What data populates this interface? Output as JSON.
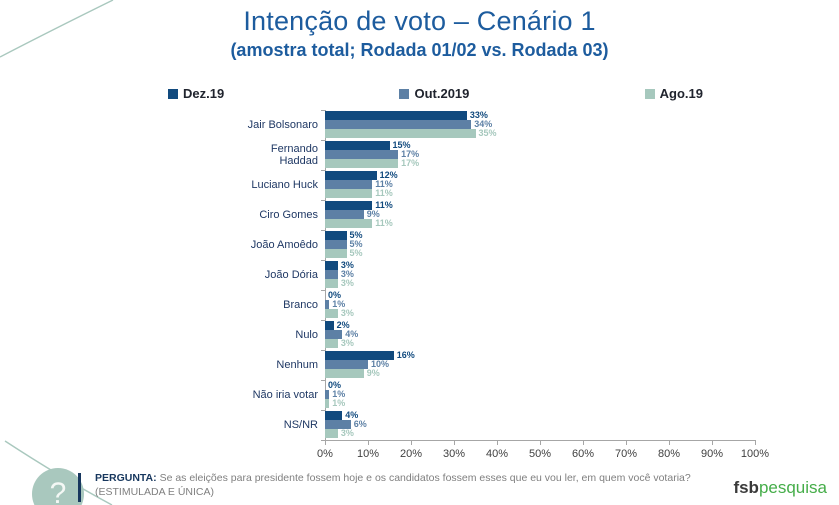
{
  "slide": {
    "title": "Intenção de voto – Cenário 1",
    "subtitle": "(amostra total; Rodada 01/02 vs. Rodada 03)"
  },
  "colors": {
    "title_blue": "#1d5c9e",
    "accent_navy": "#17375e",
    "axis_gray": "#a6a6a6",
    "tick_text": "#404040",
    "text_gray": "#7f7f7f",
    "legend_text": "#20242e",
    "deco_green": "#a9c8be",
    "logo_green": "#45ad49",
    "logo_dark": "#3a3a3a"
  },
  "chart_data": {
    "type": "bar",
    "orientation": "horizontal",
    "title": "Intenção de voto – Cenário 1",
    "subtitle": "(amostra total; Rodada 01/02 vs. Rodada 03)",
    "categories": [
      "Jair Bolsonaro",
      "Fernando Haddad",
      "Luciano Huck",
      "Ciro Gomes",
      "João Amoêdo",
      "João Dória",
      "Branco",
      "Nulo",
      "Nenhum",
      "Não iria votar",
      "NS/NR"
    ],
    "series": [
      {
        "name": "Dez.19",
        "color": "#114a7e",
        "values": [
          33,
          15,
          12,
          11,
          5,
          3,
          0,
          2,
          16,
          0,
          4
        ]
      },
      {
        "name": "Out.2019",
        "color": "#5d80a5",
        "values": [
          34,
          17,
          11,
          9,
          5,
          3,
          1,
          4,
          10,
          1,
          6
        ]
      },
      {
        "name": "Ago.19",
        "color": "#a6c8bd",
        "values": [
          35,
          17,
          11,
          11,
          5,
          3,
          3,
          3,
          9,
          1,
          3
        ]
      }
    ],
    "x_ticks": [
      "0%",
      "10%",
      "20%",
      "30%",
      "40%",
      "50%",
      "60%",
      "70%",
      "80%",
      "90%",
      "100%"
    ],
    "xlim": [
      0,
      100
    ],
    "value_suffix": "%",
    "legend_position": "top",
    "grid": false
  },
  "footer": {
    "question_label": "PERGUNTA:",
    "question_text": "Se as eleições para presidente fossem hoje e os candidatos fossem esses que eu vou ler, em quem você votaria?",
    "question_note": "(ESTIMULADA E ÚNICA)",
    "logo_bold": "fsb",
    "logo_light": "pesquisa"
  },
  "decorations": {
    "question_mark": "?"
  }
}
